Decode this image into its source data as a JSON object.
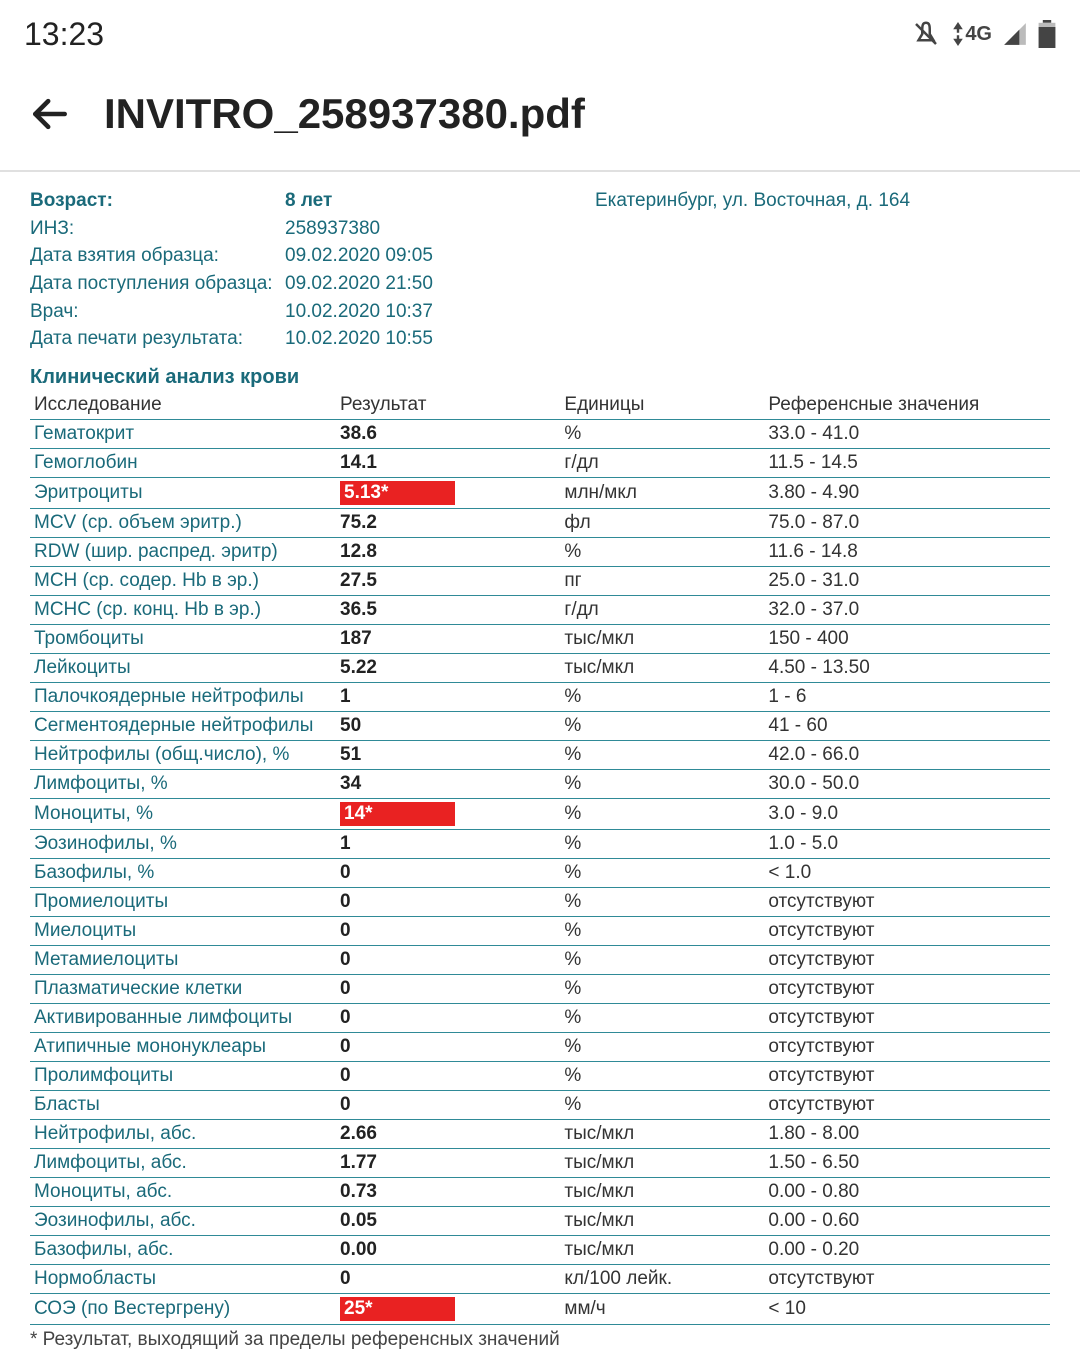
{
  "status_bar": {
    "time": "13:23",
    "network_label": "4G"
  },
  "app_bar": {
    "title": "INVITRO_258937380.pdf"
  },
  "meta": {
    "rows": [
      {
        "label": "Возраст:",
        "value": "8 лет",
        "bold": true
      },
      {
        "label": "ИНЗ:",
        "value": "258937380",
        "bold": false
      },
      {
        "label": "Дата взятия образца:",
        "value": "09.02.2020 09:05",
        "bold": false
      },
      {
        "label": "Дата поступления образца:",
        "value": "09.02.2020 21:50",
        "bold": false
      },
      {
        "label": "Врач:",
        "value": "10.02.2020 10:37",
        "bold": false
      },
      {
        "label": "Дата печати результата:",
        "value": "10.02.2020 10:55",
        "bold": false
      }
    ],
    "address": "Екатеринбург, ул. Восточная, д. 164"
  },
  "section_title": "Клинический анализ крови",
  "table": {
    "headers": [
      "Исследование",
      "Результат",
      "Единицы",
      "Референсные значения"
    ],
    "rows": [
      {
        "name": "Гематокрит",
        "result": "38.6",
        "units": "%",
        "ref": "33.0 - 41.0",
        "alert": false
      },
      {
        "name": "Гемоглобин",
        "result": "14.1",
        "units": "г/дл",
        "ref": "11.5 - 14.5",
        "alert": false
      },
      {
        "name": "Эритроциты",
        "result": "5.13*",
        "units": "млн/мкл",
        "ref": "3.80 - 4.90",
        "alert": true
      },
      {
        "name": "MCV (ср. объем эритр.)",
        "result": "75.2",
        "units": "фл",
        "ref": "75.0 - 87.0",
        "alert": false
      },
      {
        "name": "RDW (шир. распред. эритр)",
        "result": "12.8",
        "units": "%",
        "ref": "11.6 - 14.8",
        "alert": false
      },
      {
        "name": "MCH (ср. содер. Hb в эр.)",
        "result": "27.5",
        "units": "пг",
        "ref": "25.0 - 31.0",
        "alert": false
      },
      {
        "name": "MCHC (ср. конц. Hb в эр.)",
        "result": "36.5",
        "units": "г/дл",
        "ref": "32.0 - 37.0",
        "alert": false
      },
      {
        "name": "Тромбоциты",
        "result": "187",
        "units": "тыс/мкл",
        "ref": "150 - 400",
        "alert": false
      },
      {
        "name": "Лейкоциты",
        "result": "5.22",
        "units": "тыс/мкл",
        "ref": "4.50 - 13.50",
        "alert": false
      },
      {
        "name": "Палочкоядерные нейтрофилы",
        "result": "1",
        "units": "%",
        "ref": "1 - 6",
        "alert": false
      },
      {
        "name": "Сегментоядерные нейтрофилы",
        "result": "50",
        "units": "%",
        "ref": "41 - 60",
        "alert": false
      },
      {
        "name": "Нейтрофилы (общ.число), %",
        "result": "51",
        "units": "%",
        "ref": "42.0 - 66.0",
        "alert": false
      },
      {
        "name": "Лимфоциты, %",
        "result": "34",
        "units": "%",
        "ref": "30.0 - 50.0",
        "alert": false
      },
      {
        "name": "Моноциты, %",
        "result": "14*",
        "units": "%",
        "ref": "3.0 - 9.0",
        "alert": true
      },
      {
        "name": "Эозинофилы, %",
        "result": "1",
        "units": "%",
        "ref": "1.0 - 5.0",
        "alert": false
      },
      {
        "name": "Базофилы, %",
        "result": "0",
        "units": "%",
        "ref": "< 1.0",
        "alert": false
      },
      {
        "name": "Промиелоциты",
        "result": "0",
        "units": "%",
        "ref": "отсутствуют",
        "alert": false
      },
      {
        "name": "Миелоциты",
        "result": "0",
        "units": "%",
        "ref": "отсутствуют",
        "alert": false
      },
      {
        "name": "Метамиелоциты",
        "result": "0",
        "units": "%",
        "ref": "отсутствуют",
        "alert": false
      },
      {
        "name": "Плазматические клетки",
        "result": "0",
        "units": "%",
        "ref": "отсутствуют",
        "alert": false
      },
      {
        "name": "Активированные лимфоциты",
        "result": "0",
        "units": "%",
        "ref": "отсутствуют",
        "alert": false
      },
      {
        "name": "Атипичные мононуклеары",
        "result": "0",
        "units": "%",
        "ref": "отсутствуют",
        "alert": false
      },
      {
        "name": "Пролимфоциты",
        "result": "0",
        "units": "%",
        "ref": "отсутствуют",
        "alert": false
      },
      {
        "name": "Бласты",
        "result": "0",
        "units": "%",
        "ref": "отсутствуют",
        "alert": false
      },
      {
        "name": "Нейтрофилы, абс.",
        "result": "2.66",
        "units": "тыс/мкл",
        "ref": "1.80 - 8.00",
        "alert": false
      },
      {
        "name": "Лимфоциты, абс.",
        "result": "1.77",
        "units": "тыс/мкл",
        "ref": "1.50 - 6.50",
        "alert": false
      },
      {
        "name": "Моноциты, абс.",
        "result": "0.73",
        "units": "тыс/мкл",
        "ref": "0.00 - 0.80",
        "alert": false
      },
      {
        "name": "Эозинофилы, абс.",
        "result": "0.05",
        "units": "тыс/мкл",
        "ref": "0.00 - 0.60",
        "alert": false
      },
      {
        "name": "Базофилы, абс.",
        "result": "0.00",
        "units": "тыс/мкл",
        "ref": "0.00 - 0.20",
        "alert": false
      },
      {
        "name": "Нормобласты",
        "result": "0",
        "units": "кл/100 лейк.",
        "ref": "отсутствуют",
        "alert": false
      },
      {
        "name": "СОЭ (по Вестергрену)",
        "result": "25*",
        "units": "мм/ч",
        "ref": "< 10",
        "alert": true
      }
    ]
  },
  "footnote": "* Результат, выходящий за пределы референсных значений",
  "colors": {
    "teal": "#1a6a7a",
    "row_border": "#2f8a97",
    "alert_bg": "#e92222",
    "alert_text": "#ffffff",
    "body_text": "#333333"
  }
}
